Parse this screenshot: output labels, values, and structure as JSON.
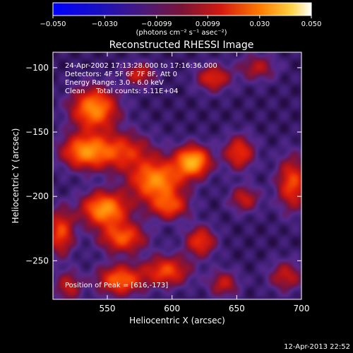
{
  "chart_data": {
    "type": "heatmap",
    "title": "Reconstructed RHESSI Image",
    "xlabel": "Heliocentric X (arcsec)",
    "ylabel": "Heliocentric Y (arcsec)",
    "xlim": [
      508,
      700
    ],
    "ylim": [
      -280,
      -88
    ],
    "x_ticks": [
      550,
      600,
      650,
      700
    ],
    "y_ticks": [
      -100,
      -150,
      -200,
      -250
    ],
    "colorbar": {
      "range": [
        -0.05,
        0.05
      ],
      "ticks": [
        "−0.050",
        "−0.030",
        "−0.0099",
        "0.0099",
        "0.030",
        "0.050"
      ],
      "tick_values": [
        -0.05,
        -0.03,
        -0.0099,
        0.0099,
        0.03,
        0.05
      ],
      "unit_label": "(photons cm⁻² s⁻¹ asec⁻²)"
    },
    "colormap": [
      "#0000ff",
      "#2a0f8c",
      "#3b2a6e",
      "#7a1436",
      "#b0141e",
      "#ff3a00",
      "#ffae00",
      "#ffffff"
    ],
    "annotations": [
      "24-Apr-2002 17:13:28.000 to 17:16:36.000",
      "Detectors: 4F 5F 6F 7F 8F, Att 0",
      "Energy Range: 3.0 - 6.0 keV",
      "Clean     Total counts: 5.11E+04",
      "Position of Peak = [616,-173]"
    ],
    "peak": {
      "x": 616,
      "y": -173
    },
    "blobs": [
      {
        "x": 616,
        "y": -173,
        "sx": 9,
        "sy": 8,
        "a": 1.0
      },
      {
        "x": 588,
        "y": -188,
        "sx": 14,
        "sy": 11,
        "a": 0.85
      },
      {
        "x": 548,
        "y": -210,
        "sx": 12,
        "sy": 9,
        "a": 0.9
      },
      {
        "x": 540,
        "y": -132,
        "sx": 12,
        "sy": 11,
        "a": 0.85
      },
      {
        "x": 532,
        "y": -165,
        "sx": 12,
        "sy": 9,
        "a": 0.75
      },
      {
        "x": 562,
        "y": -232,
        "sx": 12,
        "sy": 8,
        "a": 0.65
      },
      {
        "x": 560,
        "y": -265,
        "sx": 12,
        "sy": 8,
        "a": 0.7
      },
      {
        "x": 596,
        "y": -258,
        "sx": 12,
        "sy": 8,
        "a": 0.6
      },
      {
        "x": 598,
        "y": -208,
        "sx": 10,
        "sy": 7,
        "a": 0.55
      },
      {
        "x": 622,
        "y": -235,
        "sx": 8,
        "sy": 8,
        "a": 0.55
      },
      {
        "x": 632,
        "y": -108,
        "sx": 9,
        "sy": 7,
        "a": 0.5
      },
      {
        "x": 666,
        "y": -100,
        "sx": 10,
        "sy": 7,
        "a": 0.35
      },
      {
        "x": 652,
        "y": -166,
        "sx": 8,
        "sy": 9,
        "a": 0.55
      },
      {
        "x": 656,
        "y": -202,
        "sx": 8,
        "sy": 7,
        "a": 0.4
      },
      {
        "x": 693,
        "y": -190,
        "sx": 8,
        "sy": 14,
        "a": 0.6
      },
      {
        "x": 688,
        "y": -262,
        "sx": 9,
        "sy": 8,
        "a": 0.4
      },
      {
        "x": 640,
        "y": -268,
        "sx": 8,
        "sy": 7,
        "a": 0.4
      },
      {
        "x": 575,
        "y": -105,
        "sx": 8,
        "sy": 6,
        "a": 0.45
      },
      {
        "x": 514,
        "y": -228,
        "sx": 7,
        "sy": 12,
        "a": 0.6
      },
      {
        "x": 520,
        "y": -270,
        "sx": 7,
        "sy": 8,
        "a": 0.4
      },
      {
        "x": 560,
        "y": -165,
        "sx": 16,
        "sy": 10,
        "a": 0.55
      }
    ]
  },
  "footer": {
    "timestamp": "12-Apr-2013 22:52"
  }
}
